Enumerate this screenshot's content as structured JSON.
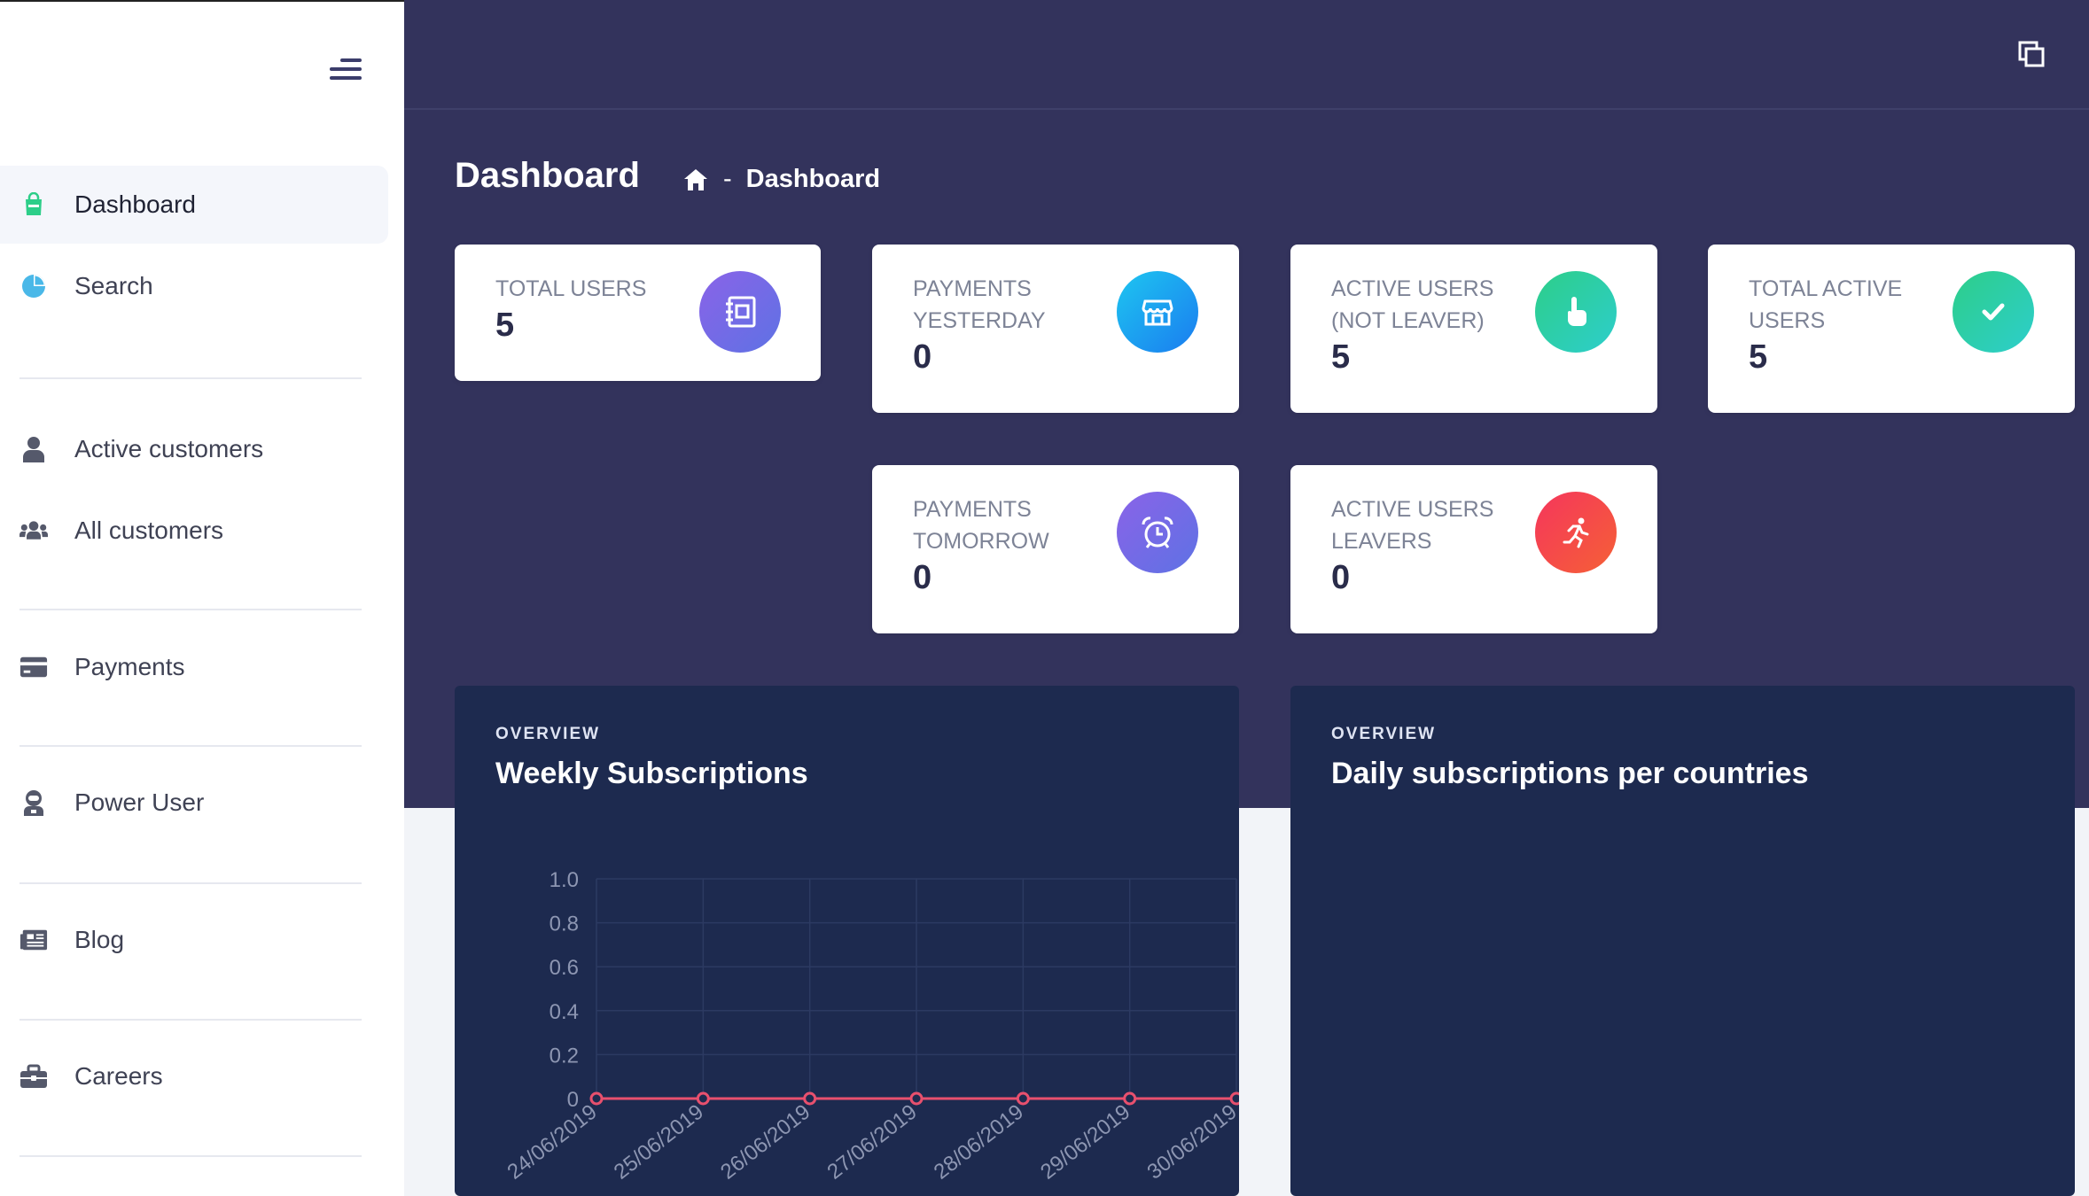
{
  "sidebar": {
    "items": [
      {
        "label": "Dashboard",
        "icon": "shopping-bag-icon"
      },
      {
        "label": "Search",
        "icon": "pie-chart-icon"
      },
      {
        "label": "Active customers",
        "icon": "user-icon"
      },
      {
        "label": "All customers",
        "icon": "users-icon"
      },
      {
        "label": "Payments",
        "icon": "credit-card-icon"
      },
      {
        "label": "Power User",
        "icon": "user-astronaut-icon"
      },
      {
        "label": "Blog",
        "icon": "newspaper-icon"
      },
      {
        "label": "Careers",
        "icon": "briefcase-icon"
      }
    ]
  },
  "header": {
    "title": "Dashboard",
    "breadcrumb_sep": "-",
    "breadcrumb": "Dashboard"
  },
  "stats": [
    {
      "title": "TOTAL USERS",
      "value": "5",
      "icon": "notebook-icon"
    },
    {
      "title": "PAYMENTS YESTERDAY",
      "value": "0",
      "icon": "store-icon"
    },
    {
      "title": "ACTIVE USERS (NOT LEAVER)",
      "value": "5",
      "icon": "pointer-hand-icon"
    },
    {
      "title": "TOTAL ACTIVE USERS",
      "value": "5",
      "icon": "check-icon"
    },
    {
      "title": "PAYMENTS TOMORROW",
      "value": "0",
      "icon": "alarm-clock-icon"
    },
    {
      "title": "ACTIVE USERS LEAVERS",
      "value": "0",
      "icon": "running-icon"
    }
  ],
  "panels": [
    {
      "overline": "OVERVIEW",
      "title": "Weekly Subscriptions"
    },
    {
      "overline": "OVERVIEW",
      "title": "Daily subscriptions per countries"
    }
  ],
  "colors": {
    "hero_bg": "#33335c",
    "panel_bg": "#1d2a4f",
    "line": "#e8506e",
    "active_icon": "#2dce89"
  },
  "chart_data": {
    "type": "line",
    "categories": [
      "24/06/2019",
      "25/06/2019",
      "26/06/2019",
      "27/06/2019",
      "28/06/2019",
      "29/06/2019",
      "30/06/2019"
    ],
    "values": [
      0,
      0,
      0,
      0,
      0,
      0,
      0
    ],
    "ylim": [
      0,
      1.0
    ],
    "yticks": [
      "0",
      "0.2",
      "0.4",
      "0.6",
      "0.8",
      "1.0"
    ],
    "grid": true
  }
}
